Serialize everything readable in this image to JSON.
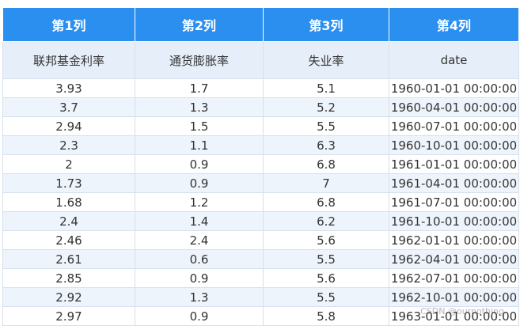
{
  "table": {
    "header_row1": [
      "第1列",
      "第2列",
      "第3列",
      "第4列"
    ],
    "header_row2": [
      "联邦基金利率",
      "通货膨胀率",
      "失业率",
      "date"
    ],
    "rows": [
      [
        "3.93",
        "1.7",
        "5.1",
        "1960-01-01 00:00:00"
      ],
      [
        "3.7",
        "1.3",
        "5.2",
        "1960-04-01 00:00:00"
      ],
      [
        "2.94",
        "1.5",
        "5.5",
        "1960-07-01 00:00:00"
      ],
      [
        "2.3",
        "1.1",
        "6.3",
        "1960-10-01 00:00:00"
      ],
      [
        "2",
        "0.9",
        "6.8",
        "1961-01-01 00:00:00"
      ],
      [
        "1.73",
        "0.9",
        "7",
        "1961-04-01 00:00:00"
      ],
      [
        "1.68",
        "1.2",
        "6.8",
        "1961-07-01 00:00:00"
      ],
      [
        "2.4",
        "1.4",
        "6.2",
        "1961-10-01 00:00:00"
      ],
      [
        "2.46",
        "2.4",
        "5.6",
        "1962-01-01 00:00:00"
      ],
      [
        "2.61",
        "0.6",
        "5.5",
        "1962-04-01 00:00:00"
      ],
      [
        "2.85",
        "0.9",
        "5.6",
        "1962-07-01 00:00:00"
      ],
      [
        "2.92",
        "1.3",
        "5.5",
        "1962-10-01 00:00:00"
      ],
      [
        "2.97",
        "0.9",
        "5.8",
        "1963-01-01 00:00:00"
      ]
    ]
  },
  "watermark": "CSDN @ournothing",
  "colors": {
    "header": "#2b8ff0",
    "subheader": "#e6eef9",
    "stripe": "#eef4fb"
  }
}
